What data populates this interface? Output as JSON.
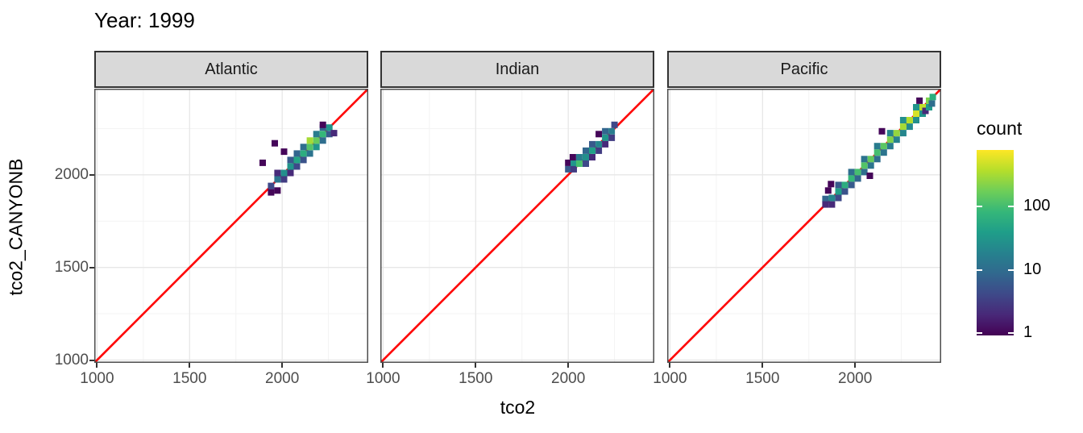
{
  "title": "Year: 1999",
  "axes": {
    "x_title": "tco2",
    "y_title": "tco2_CANYONB",
    "x_tick_labels": [
      "1000",
      "1500",
      "2000"
    ],
    "y_tick_labels": [
      "1000",
      "1500",
      "2000"
    ],
    "x_tick_values": [
      1000,
      1500,
      2000
    ],
    "y_tick_values": [
      1000,
      1500,
      2000
    ],
    "minor_tick_values": [
      1250,
      1750,
      2250
    ]
  },
  "legend": {
    "title": "count",
    "scale": "log10",
    "bar_range": [
      0.9,
      750
    ],
    "ticks": [
      {
        "value": 100,
        "label": "100"
      },
      {
        "value": 10,
        "label": "10"
      },
      {
        "value": 1,
        "label": "1"
      }
    ]
  },
  "colors": {
    "reference_line": "#ff0000",
    "strip_fill": "#d9d9d9",
    "strip_border": "#333333",
    "panel_border": "#4d4d4d",
    "panel_background": "#ffffff",
    "grid_major": "#e7e7e7",
    "grid_minor": "#f3f3f3",
    "axis_text": "#4d4d4d",
    "tick_mark": "#333333",
    "viridis": [
      [
        0.0,
        "#440154"
      ],
      [
        0.1111,
        "#482878"
      ],
      [
        0.2222,
        "#3e4989"
      ],
      [
        0.3333,
        "#31688e"
      ],
      [
        0.4444,
        "#26828e"
      ],
      [
        0.5556,
        "#1f9e89"
      ],
      [
        0.6667,
        "#35b779"
      ],
      [
        0.7778,
        "#6ece58"
      ],
      [
        0.8889,
        "#b5de2b"
      ],
      [
        1.0,
        "#fde725"
      ]
    ]
  },
  "chart_data": {
    "type": "heatmap",
    "subtype": "geom_bin2d",
    "title": "Year: 1999",
    "xlabel": "tco2",
    "ylabel": "tco2_CANYONB",
    "xlim": [
      985,
      2465
    ],
    "ylim": [
      985,
      2465
    ],
    "bin_size": 35,
    "count_scale": "log10",
    "reference_line": {
      "type": "identity",
      "intercept": 0,
      "slope": 1
    },
    "legend_title": "count",
    "legend_ticks": [
      1,
      10,
      100
    ],
    "facet_labels": [
      "Atlantic",
      "Indian",
      "Pacific"
    ],
    "panels": [
      {
        "label": "Atlantic",
        "bins": [
          [
            1940,
            1940,
            4
          ],
          [
            1940,
            1905,
            1
          ],
          [
            1975,
            1975,
            12
          ],
          [
            1975,
            1915,
            1
          ],
          [
            1975,
            2010,
            2
          ],
          [
            2010,
            2010,
            25
          ],
          [
            2010,
            1975,
            3
          ],
          [
            2010,
            2125,
            1
          ],
          [
            1960,
            2170,
            1
          ],
          [
            1895,
            2065,
            1
          ],
          [
            2045,
            2045,
            30
          ],
          [
            2045,
            2010,
            2
          ],
          [
            2045,
            2080,
            6
          ],
          [
            2080,
            2080,
            45
          ],
          [
            2080,
            2045,
            4
          ],
          [
            2080,
            2115,
            8
          ],
          [
            2115,
            2115,
            60
          ],
          [
            2115,
            2080,
            5
          ],
          [
            2115,
            2150,
            10
          ],
          [
            2150,
            2150,
            120
          ],
          [
            2150,
            2185,
            300
          ],
          [
            2150,
            2115,
            12
          ],
          [
            2185,
            2185,
            150
          ],
          [
            2185,
            2150,
            30
          ],
          [
            2185,
            2220,
            15
          ],
          [
            2220,
            2220,
            80
          ],
          [
            2220,
            2185,
            10
          ],
          [
            2220,
            2255,
            8
          ],
          [
            2255,
            2255,
            30
          ],
          [
            2255,
            2220,
            6
          ],
          [
            2280,
            2225,
            2
          ],
          [
            2220,
            2270,
            1
          ]
        ]
      },
      {
        "label": "Indian",
        "bins": [
          [
            2000,
            2030,
            6
          ],
          [
            2000,
            2065,
            1
          ],
          [
            2030,
            2060,
            30
          ],
          [
            2030,
            2030,
            3
          ],
          [
            2025,
            2095,
            1
          ],
          [
            2060,
            2060,
            100
          ],
          [
            2060,
            2095,
            15
          ],
          [
            2095,
            2095,
            25
          ],
          [
            2095,
            2060,
            4
          ],
          [
            2095,
            2130,
            8
          ],
          [
            2130,
            2130,
            40
          ],
          [
            2130,
            2095,
            2
          ],
          [
            2130,
            2165,
            6
          ],
          [
            2165,
            2165,
            20
          ],
          [
            2165,
            2130,
            3
          ],
          [
            2165,
            2220,
            1
          ],
          [
            2200,
            2200,
            30
          ],
          [
            2200,
            2165,
            2
          ],
          [
            2200,
            2235,
            8
          ],
          [
            2235,
            2235,
            15
          ],
          [
            2235,
            2200,
            3
          ],
          [
            2250,
            2270,
            4
          ]
        ]
      },
      {
        "label": "Pacific",
        "bins": [
          [
            1840,
            1870,
            8
          ],
          [
            1840,
            1840,
            2
          ],
          [
            1855,
            1915,
            1
          ],
          [
            1870,
            1950,
            1
          ],
          [
            1875,
            1875,
            20
          ],
          [
            1875,
            1840,
            2
          ],
          [
            1910,
            1910,
            40
          ],
          [
            1910,
            1875,
            4
          ],
          [
            1910,
            1945,
            6
          ],
          [
            1945,
            1945,
            60
          ],
          [
            1945,
            1910,
            5
          ],
          [
            1980,
            1980,
            80
          ],
          [
            1980,
            1945,
            6
          ],
          [
            1980,
            2015,
            10
          ],
          [
            2015,
            2015,
            100
          ],
          [
            2015,
            1980,
            8
          ],
          [
            2050,
            2050,
            120
          ],
          [
            2050,
            2015,
            10
          ],
          [
            2050,
            2085,
            12
          ],
          [
            2080,
            1995,
            1
          ],
          [
            2085,
            2085,
            150
          ],
          [
            2085,
            2050,
            12
          ],
          [
            2120,
            2120,
            100
          ],
          [
            2120,
            2085,
            10
          ],
          [
            2120,
            2155,
            15
          ],
          [
            2145,
            2235,
            1
          ],
          [
            2155,
            2155,
            130
          ],
          [
            2155,
            2120,
            12
          ],
          [
            2190,
            2190,
            200
          ],
          [
            2190,
            2155,
            15
          ],
          [
            2190,
            2225,
            20
          ],
          [
            2225,
            2225,
            250
          ],
          [
            2225,
            2190,
            18
          ],
          [
            2260,
            2260,
            300
          ],
          [
            2260,
            2225,
            20
          ],
          [
            2260,
            2295,
            25
          ],
          [
            2295,
            2295,
            350
          ],
          [
            2295,
            2260,
            22
          ],
          [
            2330,
            2330,
            500
          ],
          [
            2330,
            2295,
            25
          ],
          [
            2330,
            2365,
            30
          ],
          [
            2348,
            2400,
            1
          ],
          [
            2365,
            2365,
            400
          ],
          [
            2365,
            2330,
            30
          ],
          [
            2380,
            2345,
            2
          ],
          [
            2400,
            2400,
            200
          ],
          [
            2400,
            2365,
            35
          ],
          [
            2420,
            2420,
            60
          ],
          [
            2415,
            2385,
            10
          ]
        ]
      }
    ]
  }
}
